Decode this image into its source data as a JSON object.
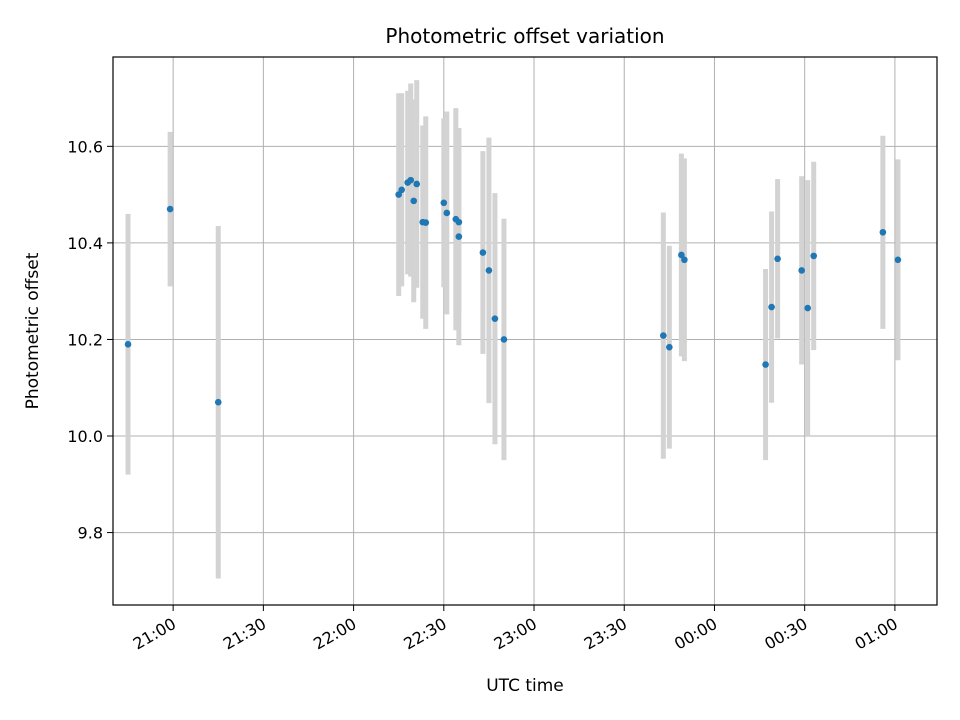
{
  "chart_data": {
    "type": "scatter",
    "title": "Photometric offset variation",
    "xlabel": "UTC time",
    "ylabel": "Photometric offset",
    "grid": true,
    "x_tick_labels": [
      "21:00",
      "21:30",
      "22:00",
      "22:30",
      "23:00",
      "23:30",
      "00:00",
      "00:30",
      "01:00"
    ],
    "y_ticks": [
      9.8,
      10.0,
      10.2,
      10.4,
      10.6
    ],
    "y_tick_labels": [
      "9.8",
      "10.0",
      "10.2",
      "10.4",
      "10.6"
    ],
    "xlim": [
      "20:40",
      "01:14"
    ],
    "ylim": [
      9.65,
      10.785
    ],
    "colors": {
      "point": "#1f77b4",
      "errorbar": "#d3d3d3",
      "grid": "#b0b0b0"
    },
    "points": [
      {
        "x": "20:45",
        "y": 10.19,
        "yerr": 0.27
      },
      {
        "x": "20:59",
        "y": 10.47,
        "yerr": 0.16
      },
      {
        "x": "21:15",
        "y": 10.07,
        "yerr": 0.365
      },
      {
        "x": "22:15",
        "y": 10.5,
        "yerr": 0.21
      },
      {
        "x": "22:16",
        "y": 10.51,
        "yerr": 0.2
      },
      {
        "x": "22:18",
        "y": 10.525,
        "yerr": 0.19
      },
      {
        "x": "22:19",
        "y": 10.53,
        "yerr": 0.2
      },
      {
        "x": "22:20",
        "y": 10.487,
        "yerr": 0.21
      },
      {
        "x": "22:21",
        "y": 10.522,
        "yerr": 0.215
      },
      {
        "x": "22:23",
        "y": 10.443,
        "yerr": 0.2
      },
      {
        "x": "22:24",
        "y": 10.442,
        "yerr": 0.22
      },
      {
        "x": "22:30",
        "y": 10.483,
        "yerr": 0.175
      },
      {
        "x": "22:31",
        "y": 10.462,
        "yerr": 0.21
      },
      {
        "x": "22:34",
        "y": 10.449,
        "yerr": 0.23
      },
      {
        "x": "22:35",
        "y": 10.443,
        "yerr": 0.19
      },
      {
        "x": "22:35",
        "y": 10.413,
        "yerr": 0.225
      },
      {
        "x": "22:43",
        "y": 10.38,
        "yerr": 0.21
      },
      {
        "x": "22:45",
        "y": 10.343,
        "yerr": 0.275
      },
      {
        "x": "22:47",
        "y": 10.243,
        "yerr": 0.26
      },
      {
        "x": "22:50",
        "y": 10.2,
        "yerr": 0.25
      },
      {
        "x": "23:43",
        "y": 10.208,
        "yerr": 0.255
      },
      {
        "x": "23:45",
        "y": 10.184,
        "yerr": 0.21
      },
      {
        "x": "23:49",
        "y": 10.375,
        "yerr": 0.21
      },
      {
        "x": "23:50",
        "y": 10.365,
        "yerr": 0.21
      },
      {
        "x": "00:17",
        "y": 10.148,
        "yerr": 0.198
      },
      {
        "x": "00:19",
        "y": 10.267,
        "yerr": 0.198
      },
      {
        "x": "00:21",
        "y": 10.367,
        "yerr": 0.165
      },
      {
        "x": "00:29",
        "y": 10.343,
        "yerr": 0.195
      },
      {
        "x": "00:31",
        "y": 10.265,
        "yerr": 0.265
      },
      {
        "x": "00:33",
        "y": 10.373,
        "yerr": 0.195
      },
      {
        "x": "00:56",
        "y": 10.422,
        "yerr": 0.2
      },
      {
        "x": "01:01",
        "y": 10.365,
        "yerr": 0.208
      }
    ]
  }
}
